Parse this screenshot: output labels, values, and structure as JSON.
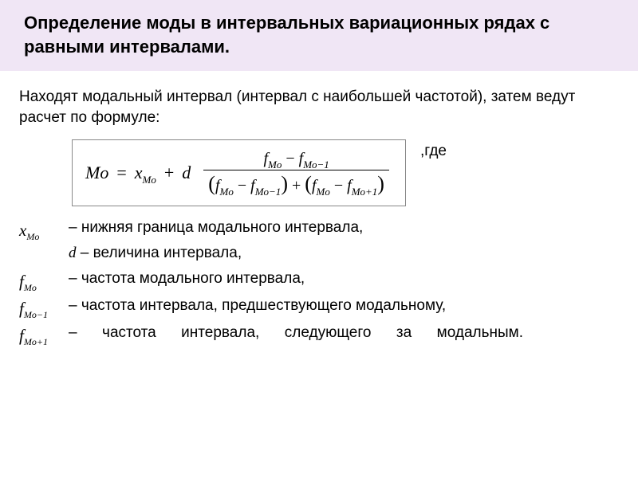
{
  "header": {
    "title_line1": "Определение моды в интервальных вариационных рядах с равными интервалами."
  },
  "intro": "Находят модальный интервал (интервал с наибольшей частотой), затем ведут расчет по формуле:",
  "where_label": ",где",
  "formula": {
    "Mo": "Mo",
    "x": "x",
    "d": "d",
    "f": "f",
    "sub_Mo": "Mo",
    "sub_Mo_minus1": "Mo−1",
    "sub_Mo_plus1": "Mo+1"
  },
  "defs": {
    "x_Mo": "– нижняя граница модального интервала,",
    "d": "d – величина интервала,",
    "f_Mo": "– частота модального интервала,",
    "f_Mo_m1": "– частота интервала, предшествующего модальному,",
    "f_Mo_p1": "– частота интервала, следующего за модальным."
  },
  "colors": {
    "header_bg": "#f0e6f5",
    "text": "#000000",
    "border": "#888888",
    "bg": "#ffffff"
  }
}
